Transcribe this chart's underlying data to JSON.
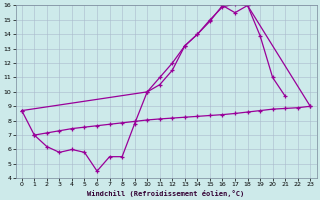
{
  "xlabel": "Windchill (Refroidissement éolien,°C)",
  "bg_color": "#cdeaea",
  "line_color": "#990099",
  "grid_color": "#aabbcc",
  "xlim": [
    -0.5,
    23.5
  ],
  "ylim": [
    4,
    16
  ],
  "xticks": [
    0,
    1,
    2,
    3,
    4,
    5,
    6,
    7,
    8,
    9,
    10,
    11,
    12,
    13,
    14,
    15,
    16,
    17,
    18,
    19,
    20,
    21,
    22,
    23
  ],
  "yticks": [
    4,
    5,
    6,
    7,
    8,
    9,
    10,
    11,
    12,
    13,
    14,
    15,
    16
  ],
  "line1_x": [
    0,
    1,
    2,
    3,
    4,
    5,
    6,
    7,
    8,
    9,
    10,
    11,
    12,
    13,
    14,
    15,
    16,
    17,
    18,
    19,
    20,
    21
  ],
  "line1_y": [
    8.7,
    7.0,
    6.2,
    5.8,
    6.0,
    5.8,
    4.5,
    5.5,
    5.5,
    7.8,
    10.0,
    10.5,
    11.5,
    13.2,
    14.0,
    14.9,
    16.0,
    15.5,
    16.0,
    13.9,
    11.0,
    9.7
  ],
  "line2_x": [
    0,
    10,
    11,
    12,
    13,
    14,
    15,
    16,
    17,
    18,
    23
  ],
  "line2_y": [
    8.7,
    10.0,
    11.0,
    12.0,
    13.2,
    14.0,
    15.0,
    15.9,
    16.1,
    16.0,
    9.0
  ],
  "line3_x": [
    1,
    2,
    3,
    4,
    5,
    6,
    7,
    8,
    9,
    10,
    11,
    12,
    13,
    14,
    15,
    16,
    17,
    18,
    19,
    20,
    21,
    22,
    23
  ],
  "line3_y": [
    7.0,
    7.15,
    7.3,
    7.45,
    7.55,
    7.65,
    7.75,
    7.85,
    7.95,
    8.05,
    8.12,
    8.18,
    8.24,
    8.3,
    8.36,
    8.42,
    8.5,
    8.6,
    8.7,
    8.8,
    8.85,
    8.9,
    9.0
  ]
}
